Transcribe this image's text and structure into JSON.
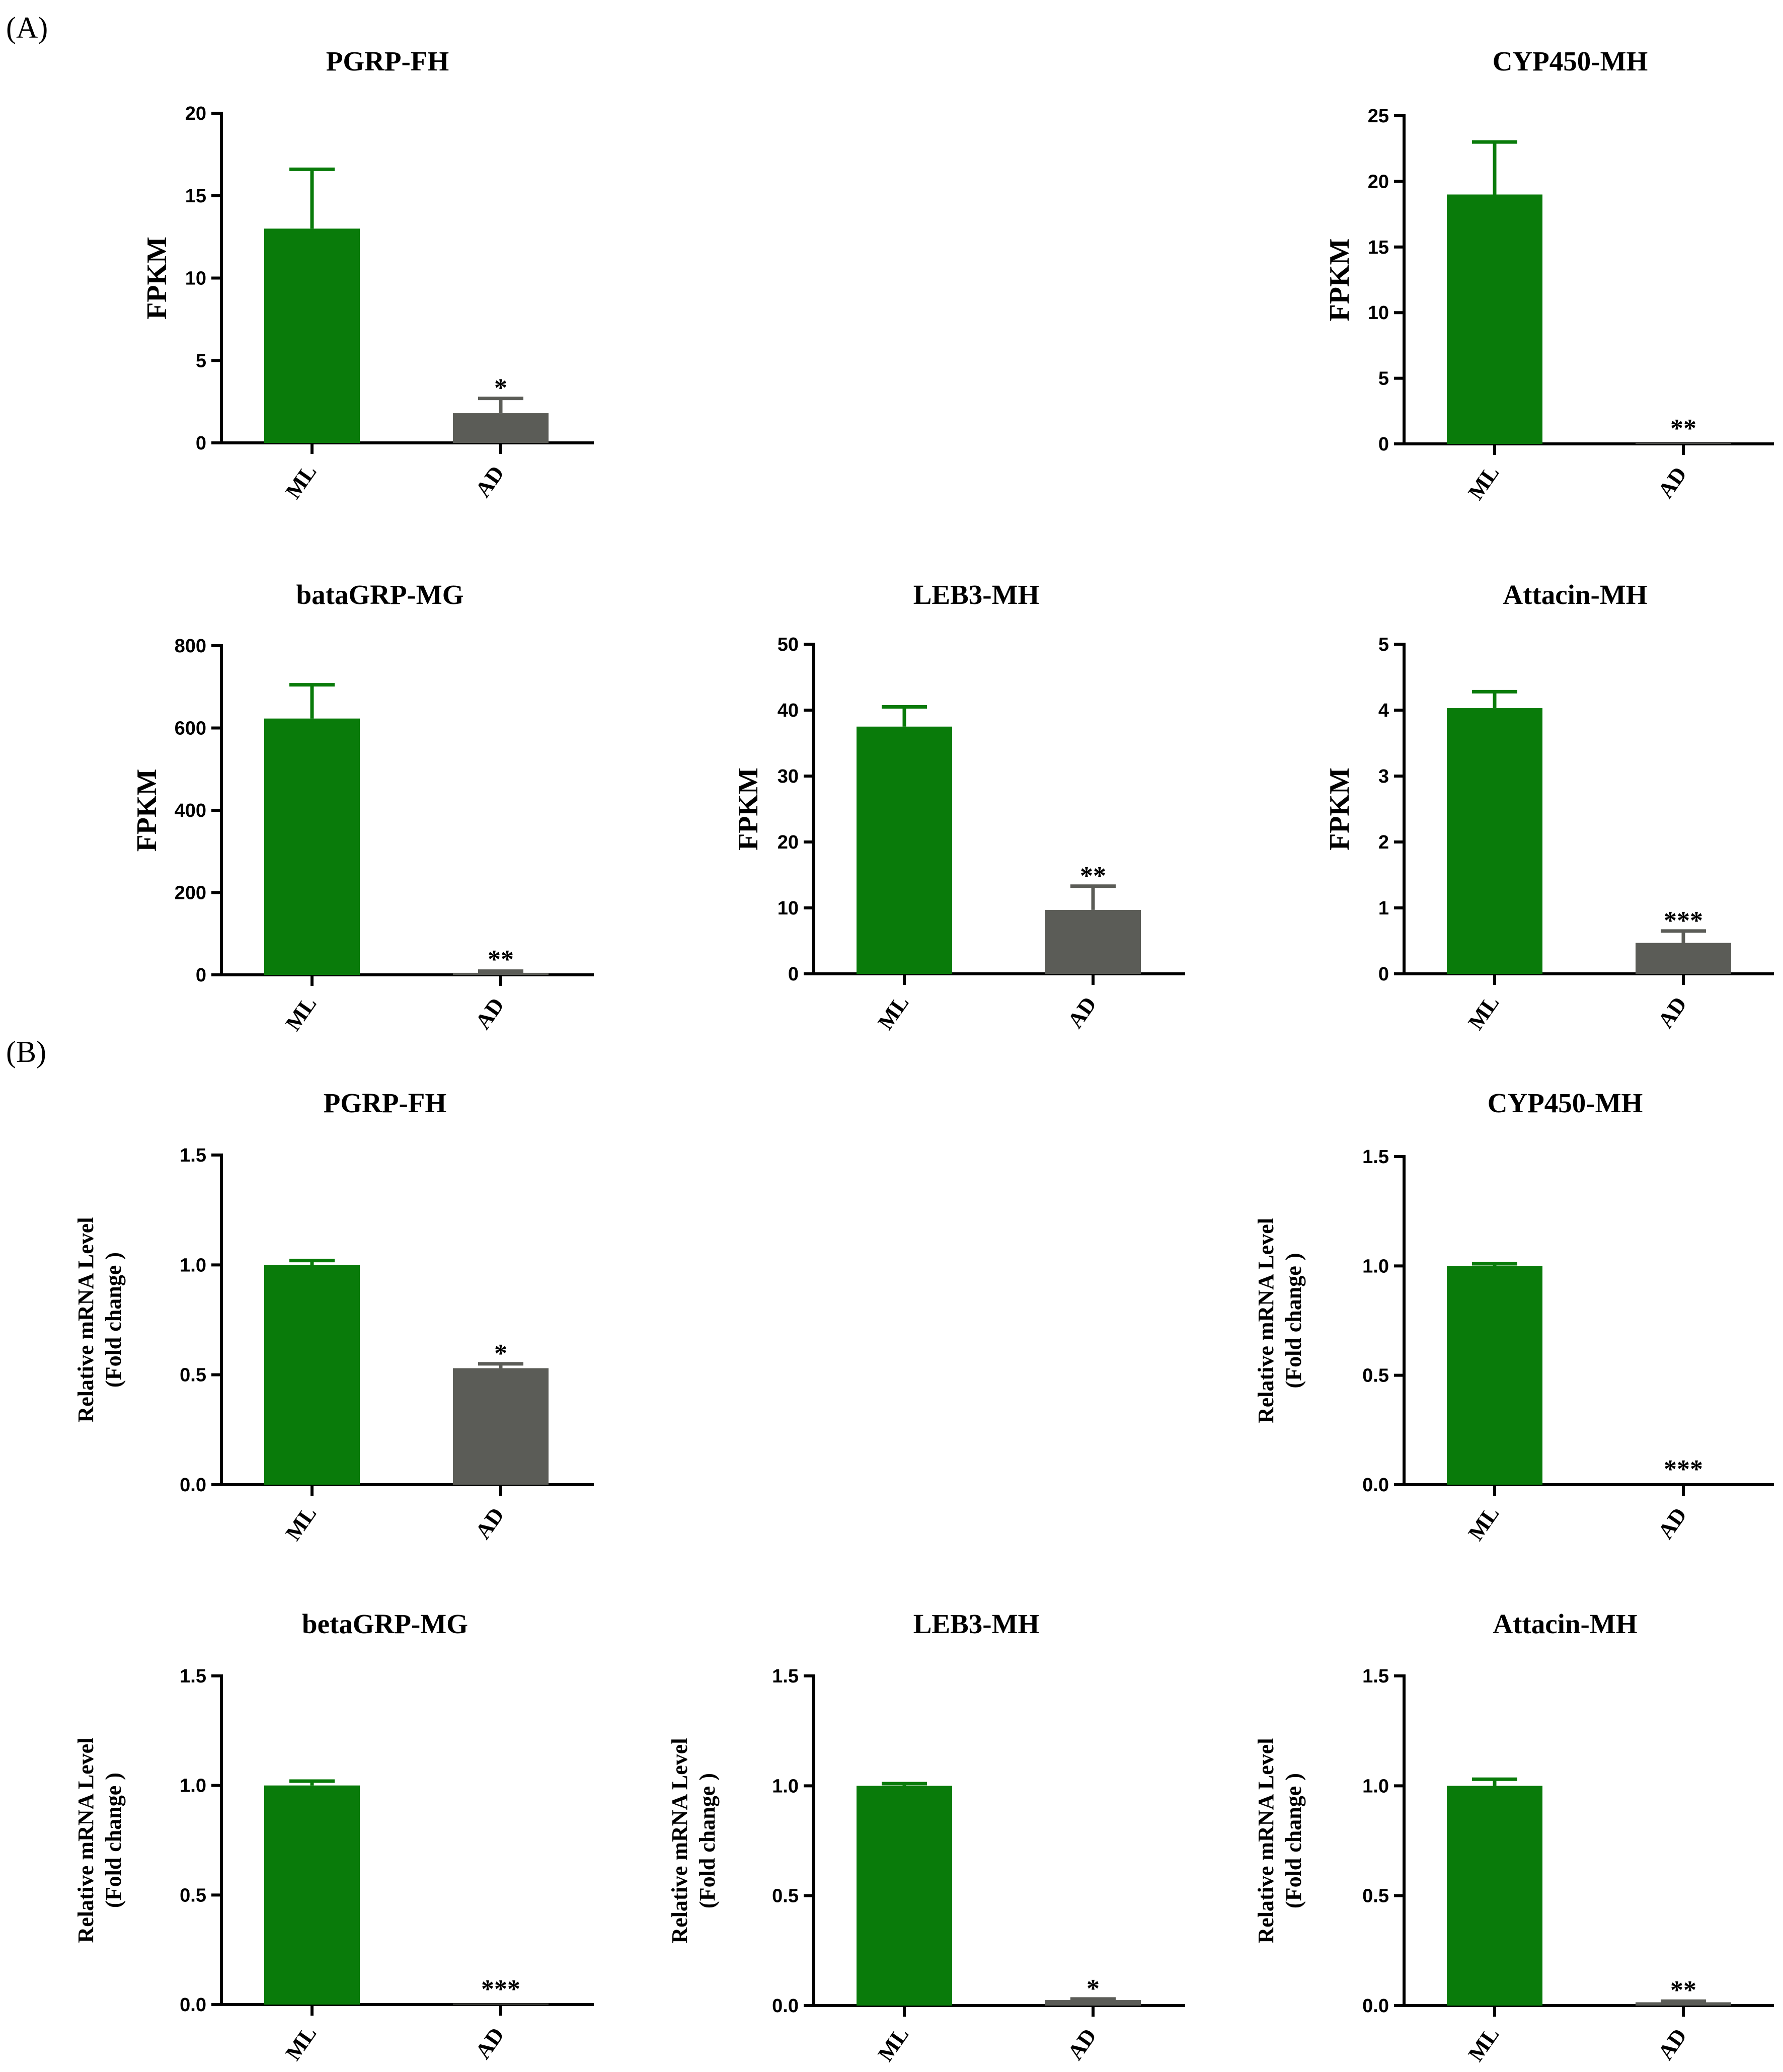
{
  "panels": [
    {
      "label": "(A)"
    },
    {
      "label": "(B)"
    }
  ],
  "colors": {
    "ML": "#097B0A",
    "AD": "#5B5C57"
  },
  "chart_data": [
    {
      "panel": "A",
      "type": "bar",
      "title": "PGRP-FH",
      "ylabel": [
        "FPKM"
      ],
      "categories": [
        "ML",
        "AD"
      ],
      "values": [
        13.0,
        1.8
      ],
      "errors": [
        3.6,
        0.9
      ],
      "significance": [
        "",
        "*"
      ],
      "ylim": [
        0,
        20
      ],
      "yticks": [
        "0",
        "5",
        "10",
        "15",
        "20"
      ]
    },
    {
      "panel": "A",
      "type": "bar",
      "title": "CYP450-MH",
      "ylabel": [
        "FPKM"
      ],
      "categories": [
        "ML",
        "AD"
      ],
      "values": [
        19.0,
        0.05
      ],
      "errors": [
        4.0,
        0.0
      ],
      "significance": [
        "",
        "**"
      ],
      "ylim": [
        0,
        25
      ],
      "yticks": [
        "0",
        "5",
        "10",
        "15",
        "20",
        "25"
      ]
    },
    {
      "panel": "A",
      "type": "bar",
      "title": "bataGRP-MG",
      "ylabel": [
        "FPKM"
      ],
      "categories": [
        "ML",
        "AD"
      ],
      "values": [
        623,
        5
      ],
      "errors": [
        82,
        4
      ],
      "significance": [
        "",
        "**"
      ],
      "ylim": [
        0,
        800
      ],
      "yticks": [
        "0",
        "200",
        "400",
        "600",
        "800"
      ]
    },
    {
      "panel": "A",
      "type": "bar",
      "title": "LEB3-MH",
      "ylabel": [
        "FPKM"
      ],
      "categories": [
        "ML",
        "AD"
      ],
      "values": [
        37.5,
        9.7
      ],
      "errors": [
        3.0,
        3.6
      ],
      "significance": [
        "",
        "**"
      ],
      "ylim": [
        0,
        50
      ],
      "yticks": [
        "0",
        "10",
        "20",
        "30",
        "40",
        "50"
      ]
    },
    {
      "panel": "A",
      "type": "bar",
      "title": "Attacin-MH",
      "ylabel": [
        "FPKM"
      ],
      "categories": [
        "ML",
        "AD"
      ],
      "values": [
        4.03,
        0.47
      ],
      "errors": [
        0.25,
        0.18
      ],
      "significance": [
        "",
        "***"
      ],
      "ylim": [
        0,
        5
      ],
      "yticks": [
        "0",
        "1",
        "2",
        "3",
        "4",
        "5"
      ]
    },
    {
      "panel": "B",
      "type": "bar",
      "title": "PGRP-FH",
      "ylabel": [
        "Relative mRNA Level",
        "(Fold change )"
      ],
      "categories": [
        "ML",
        "AD"
      ],
      "values": [
        1.0,
        0.53
      ],
      "errors": [
        0.02,
        0.02
      ],
      "significance": [
        "",
        "*"
      ],
      "ylim": [
        0,
        1.5
      ],
      "yticks": [
        "0.0",
        "0.5",
        "1.0",
        "1.5"
      ]
    },
    {
      "panel": "B",
      "type": "bar",
      "title": "CYP450-MH",
      "ylabel": [
        "Relative mRNA Level",
        "(Fold change )"
      ],
      "categories": [
        "ML",
        "AD"
      ],
      "values": [
        1.0,
        0.0
      ],
      "errors": [
        0.01,
        0.0
      ],
      "significance": [
        "",
        "***"
      ],
      "ylim": [
        0,
        1.5
      ],
      "yticks": [
        "0.0",
        "0.5",
        "1.0",
        "1.5"
      ]
    },
    {
      "panel": "B",
      "type": "bar",
      "title": "betaGRP-MG",
      "ylabel": [
        "Relative mRNA Level",
        "(Fold change )"
      ],
      "categories": [
        "ML",
        "AD"
      ],
      "values": [
        1.0,
        0.005
      ],
      "errors": [
        0.02,
        0.0
      ],
      "significance": [
        "",
        "***"
      ],
      "ylim": [
        0,
        1.5
      ],
      "yticks": [
        "0.0",
        "0.5",
        "1.0",
        "1.5"
      ]
    },
    {
      "panel": "B",
      "type": "bar",
      "title": "LEB3-MH",
      "ylabel": [
        "Relative mRNA Level",
        "(Fold change )"
      ],
      "categories": [
        "ML",
        "AD"
      ],
      "values": [
        1.0,
        0.025
      ],
      "errors": [
        0.01,
        0.005
      ],
      "significance": [
        "",
        "*"
      ],
      "ylim": [
        0,
        1.5
      ],
      "yticks": [
        "0.0",
        "0.5",
        "1.0",
        "1.5"
      ]
    },
    {
      "panel": "B",
      "type": "bar",
      "title": "Attacin-MH",
      "ylabel": [
        "Relative mRNA Level",
        "(Fold change )"
      ],
      "categories": [
        "ML",
        "AD"
      ],
      "values": [
        1.0,
        0.015
      ],
      "errors": [
        0.03,
        0.005
      ],
      "significance": [
        "",
        "**"
      ],
      "ylim": [
        0,
        1.5
      ],
      "yticks": [
        "0.0",
        "0.5",
        "1.0",
        "1.5"
      ]
    }
  ]
}
